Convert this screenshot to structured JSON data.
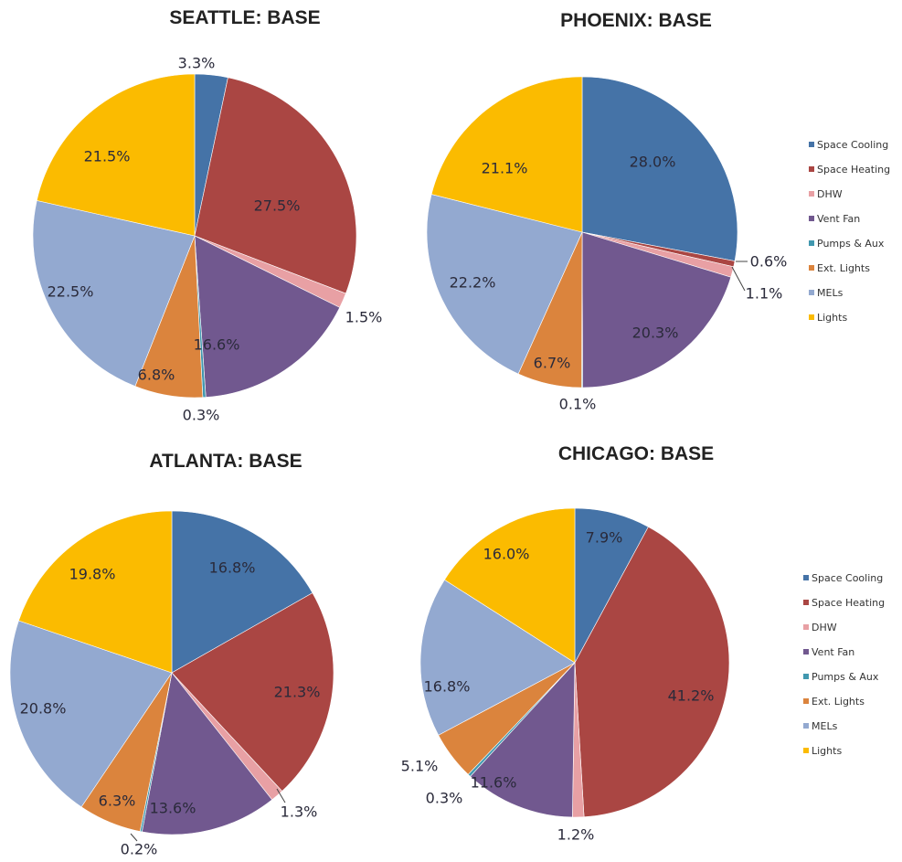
{
  "category_colors": {
    "Space Cooling": "#4573a7",
    "Space Heating": "#aa4643",
    "DHW": "#e8a0a4",
    "Vent Fan": "#71588f",
    "Pumps & Aux": "#4198af",
    "Ext. Lights": "#db843d",
    "MELs": "#93a9d0",
    "Lights": "#fbbb00"
  },
  "chart_data": [
    {
      "type": "pie",
      "title": "SEATTLE: BASE",
      "categories": [
        "Space Cooling",
        "Space Heating",
        "DHW",
        "Vent Fan",
        "Pumps & Aux",
        "Ext. Lights",
        "MELs",
        "Lights"
      ],
      "values": [
        3.3,
        27.5,
        1.5,
        16.6,
        0.3,
        6.8,
        22.5,
        21.5
      ],
      "labels": [
        "3.3%",
        "27.5%",
        "1.5%",
        "16.6%",
        "0.3%",
        "6.8%",
        "22.5%",
        "21.5%"
      ],
      "legend": "none"
    },
    {
      "type": "pie",
      "title": "PHOENIX: BASE",
      "categories": [
        "Space Cooling",
        "Space Heating",
        "DHW",
        "Vent Fan",
        "Pumps & Aux",
        "Ext. Lights",
        "MELs",
        "Lights"
      ],
      "values": [
        28.0,
        0.6,
        1.1,
        20.3,
        0.1,
        6.7,
        22.2,
        21.1
      ],
      "labels": [
        "28.0%",
        "0.6%",
        "1.1%",
        "20.3%",
        "0.1%",
        "6.7%",
        "22.2%",
        "21.1%"
      ],
      "legend": "right",
      "legend_entries": [
        "Space Cooling",
        "Space Heating",
        "DHW",
        "Vent Fan",
        "Pumps & Aux",
        "Ext. Lights",
        "MELs",
        "Lights"
      ]
    },
    {
      "type": "pie",
      "title": "ATLANTA: BASE",
      "categories": [
        "Space Cooling",
        "Space Heating",
        "DHW",
        "Vent Fan",
        "Pumps & Aux",
        "Ext. Lights",
        "MELs",
        "Lights"
      ],
      "values": [
        16.8,
        21.3,
        1.3,
        13.6,
        0.2,
        6.3,
        20.8,
        19.8
      ],
      "labels": [
        "16.8%",
        "21.3%",
        "1.3%",
        "13.6%",
        "0.2%",
        "6.3%",
        "20.8%",
        "19.8%"
      ],
      "legend": "none"
    },
    {
      "type": "pie",
      "title": "CHICAGO: BASE",
      "categories": [
        "Space Cooling",
        "Space Heating",
        "DHW",
        "Vent Fan",
        "Pumps & Aux",
        "Ext. Lights",
        "MELs",
        "Lights"
      ],
      "values": [
        7.9,
        41.2,
        1.2,
        11.6,
        0.3,
        5.1,
        16.8,
        16.0
      ],
      "labels": [
        "7.9%",
        "41.2%",
        "1.2%",
        "11.6%",
        "0.3%",
        "5.1%",
        "16.8%",
        "16.0%"
      ],
      "legend": "right",
      "legend_entries": [
        "Space Cooling",
        "Space Heating",
        "DHW",
        "Vent Fan",
        "Pumps & Aux",
        "Ext. Lights",
        "MELs",
        "Lights"
      ]
    }
  ]
}
